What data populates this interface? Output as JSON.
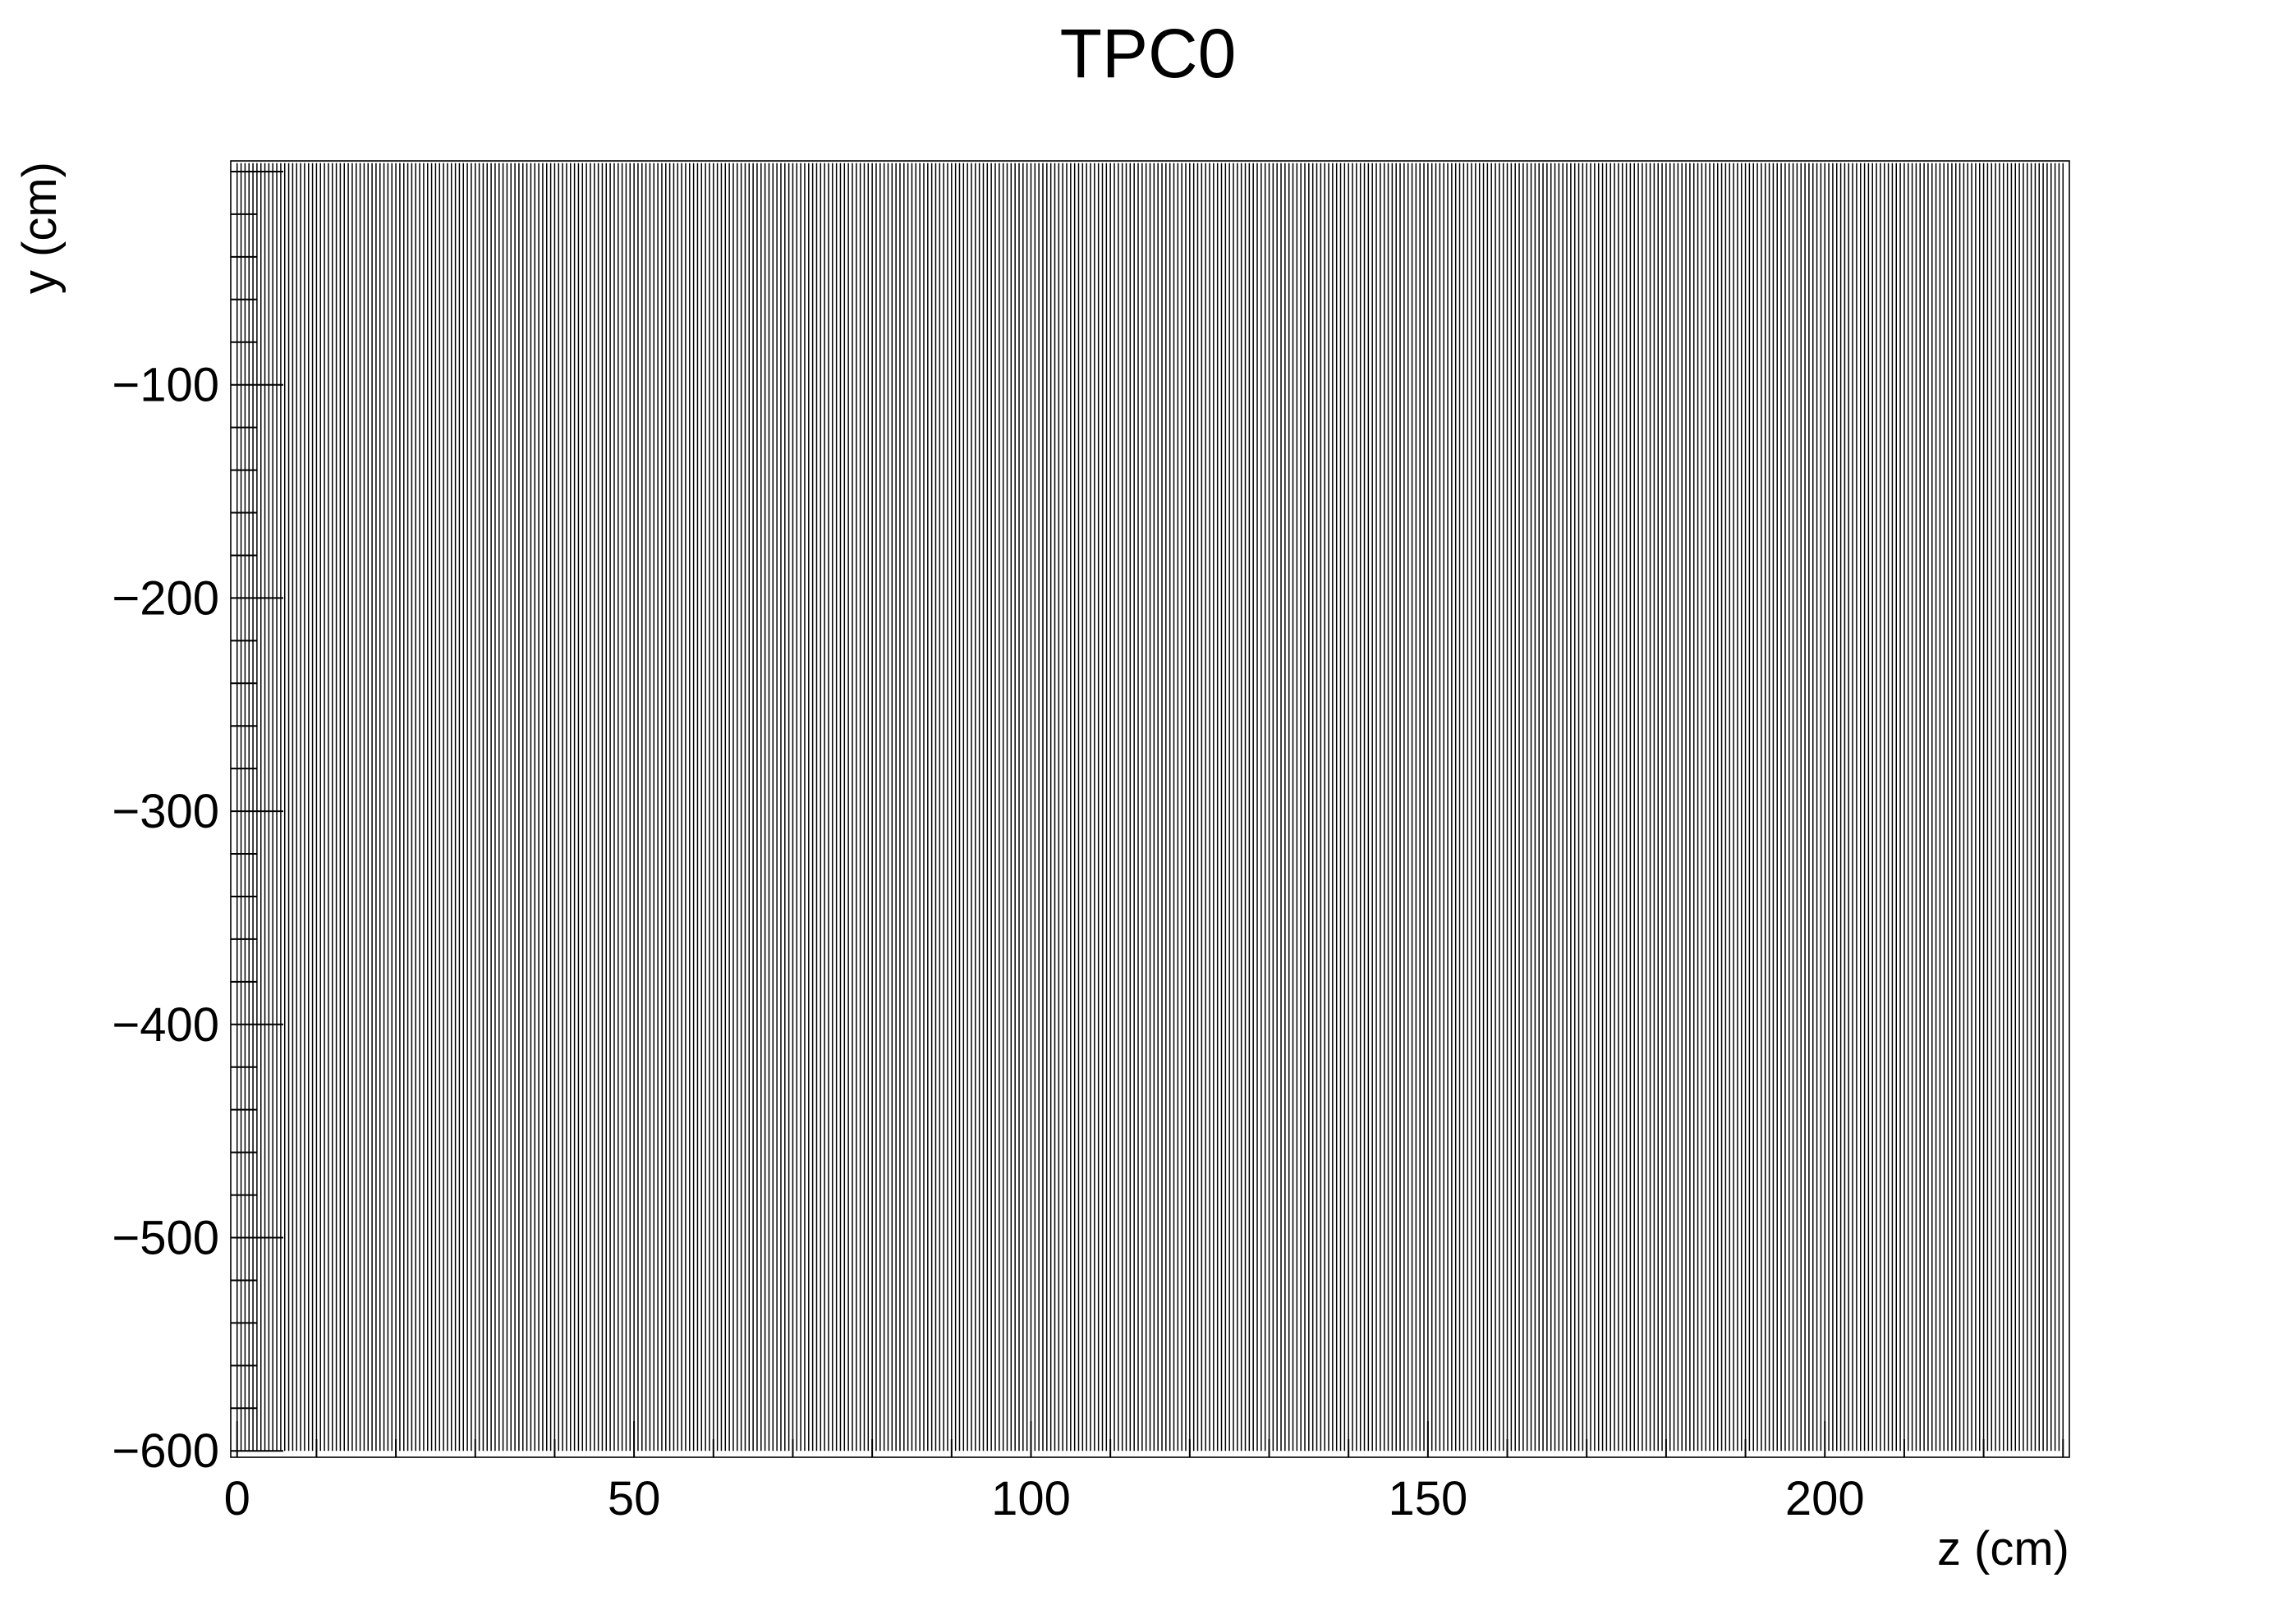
{
  "chart_data": {
    "type": "line",
    "title": "TPC0",
    "xlabel": "z (cm)",
    "ylabel": "y (cm)",
    "xlim": [
      -0.8,
      230.8
    ],
    "ylim": [
      -603,
      5
    ],
    "x_ticks": [
      0,
      50,
      100,
      150,
      200
    ],
    "y_ticks": [
      -100,
      -200,
      -300,
      -400,
      -500,
      -600
    ],
    "x_tick_labels": [
      "0",
      "50",
      "100",
      "150",
      "200"
    ],
    "y_tick_labels": [
      "−100",
      "−200",
      "−300",
      "−400",
      "−500",
      "−600"
    ],
    "grid": false,
    "series": [
      {
        "description_free": true,
        "orientation": "vertical",
        "x_start": 0,
        "x_end": 230,
        "x_step": 0.5,
        "y_range": [
          -600,
          4
        ]
      }
    ]
  }
}
